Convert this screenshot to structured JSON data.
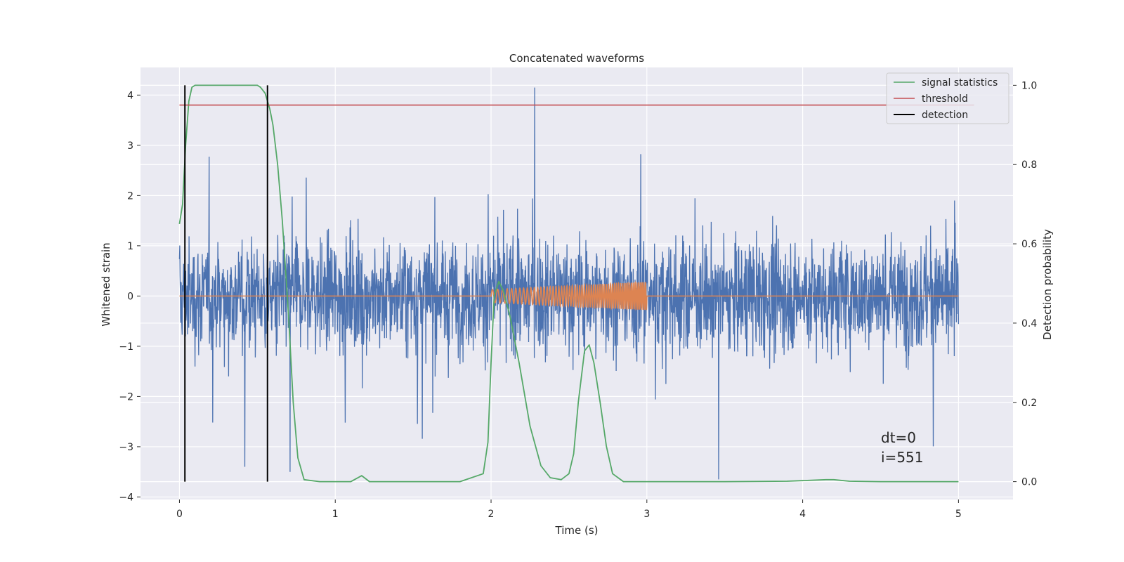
{
  "chart_data": {
    "type": "line",
    "title": "Concatenated waveforms",
    "xlabel": "Time (s)",
    "ylabel": "Whitened strain",
    "ylabel_right": "Detection probability",
    "xlim": [
      -0.25,
      5.35
    ],
    "ylim": [
      -4.05,
      4.55
    ],
    "ylim_right": [
      -0.045,
      1.045
    ],
    "x_ticks": [
      0,
      1,
      2,
      3,
      4,
      5
    ],
    "y_ticks": [
      -4,
      -3,
      -2,
      -1,
      0,
      1,
      2,
      3,
      4
    ],
    "y_ticks_right": [
      0.0,
      0.2,
      0.4,
      0.6,
      0.8,
      1.0
    ],
    "x_tick_labels": [
      "0",
      "1",
      "2",
      "3",
      "4",
      "5"
    ],
    "y_tick_labels": [
      "−4",
      "−3",
      "−2",
      "−1",
      "0",
      "1",
      "2",
      "3",
      "4"
    ],
    "y_tick_labels_right": [
      "0.0",
      "0.2",
      "0.4",
      "0.6",
      "0.8",
      "1.0"
    ],
    "grid": true,
    "legend": {
      "position": "top-right",
      "entries": [
        {
          "label": "signal statistics",
          "color": "#55a868"
        },
        {
          "label": "threshold",
          "color": "#c44e52"
        },
        {
          "label": "detection",
          "color": "#000000"
        }
      ]
    },
    "series": [
      {
        "kind": "noisy-strain",
        "color": "#4c72b0",
        "axis": "left",
        "x_range": [
          0,
          5
        ],
        "amplitude_typical": 1.0,
        "max_value": 4.15,
        "min_value": -3.65,
        "notable_peaks": [
          [
            2.28,
            4.15
          ],
          [
            3.46,
            -3.65
          ],
          [
            0.42,
            -3.4
          ],
          [
            0.71,
            -3.5
          ]
        ]
      },
      {
        "kind": "injected-chirp",
        "color": "#dd8452",
        "axis": "left",
        "x_range": [
          0,
          5
        ],
        "chirp_start": 2.0,
        "chirp_end": 3.0,
        "start_amplitude": 0.13,
        "end_amplitude": 0.28
      },
      {
        "name": "signal statistics",
        "color": "#55a868",
        "axis": "right",
        "x": [
          0,
          0.02,
          0.04,
          0.06,
          0.08,
          0.1,
          0.15,
          0.3,
          0.5,
          0.52,
          0.55,
          0.58,
          0.6,
          0.63,
          0.66,
          0.7,
          0.73,
          0.76,
          0.8,
          0.9,
          1.1,
          1.17,
          1.22,
          1.3,
          1.5,
          1.8,
          1.95,
          1.98,
          2.0,
          2.02,
          2.05,
          2.08,
          2.12,
          2.18,
          2.25,
          2.32,
          2.38,
          2.45,
          2.5,
          2.53,
          2.56,
          2.6,
          2.63,
          2.66,
          2.7,
          2.74,
          2.78,
          2.85,
          3.0,
          3.5,
          3.9,
          4.15,
          4.2,
          4.3,
          4.5,
          5.0
        ],
        "values": [
          0.65,
          0.7,
          0.85,
          0.96,
          0.995,
          1.0,
          1.0,
          1.0,
          1.0,
          0.995,
          0.98,
          0.94,
          0.9,
          0.8,
          0.66,
          0.42,
          0.2,
          0.06,
          0.005,
          0.0,
          0.0,
          0.015,
          0.0,
          0.0,
          0.0,
          0.0,
          0.02,
          0.1,
          0.3,
          0.47,
          0.505,
          0.48,
          0.42,
          0.3,
          0.14,
          0.04,
          0.01,
          0.005,
          0.02,
          0.07,
          0.2,
          0.33,
          0.345,
          0.3,
          0.2,
          0.09,
          0.02,
          0.0,
          0.0,
          0.0,
          0.001,
          0.005,
          0.005,
          0.001,
          0.0,
          0.0
        ]
      },
      {
        "name": "threshold",
        "color": "#c44e52",
        "axis": "right",
        "x": [
          0,
          5.1
        ],
        "values": [
          0.95,
          0.95
        ]
      },
      {
        "name": "detection",
        "color": "#000000",
        "axis": "right",
        "kind": "vertical-lines",
        "x": [
          0.035,
          0.565
        ],
        "y_range": [
          0,
          1
        ]
      }
    ],
    "annotations": [
      {
        "lines": [
          "dt=0",
          "i=551"
        ],
        "x": 4.5,
        "y": -3.0
      }
    ]
  }
}
